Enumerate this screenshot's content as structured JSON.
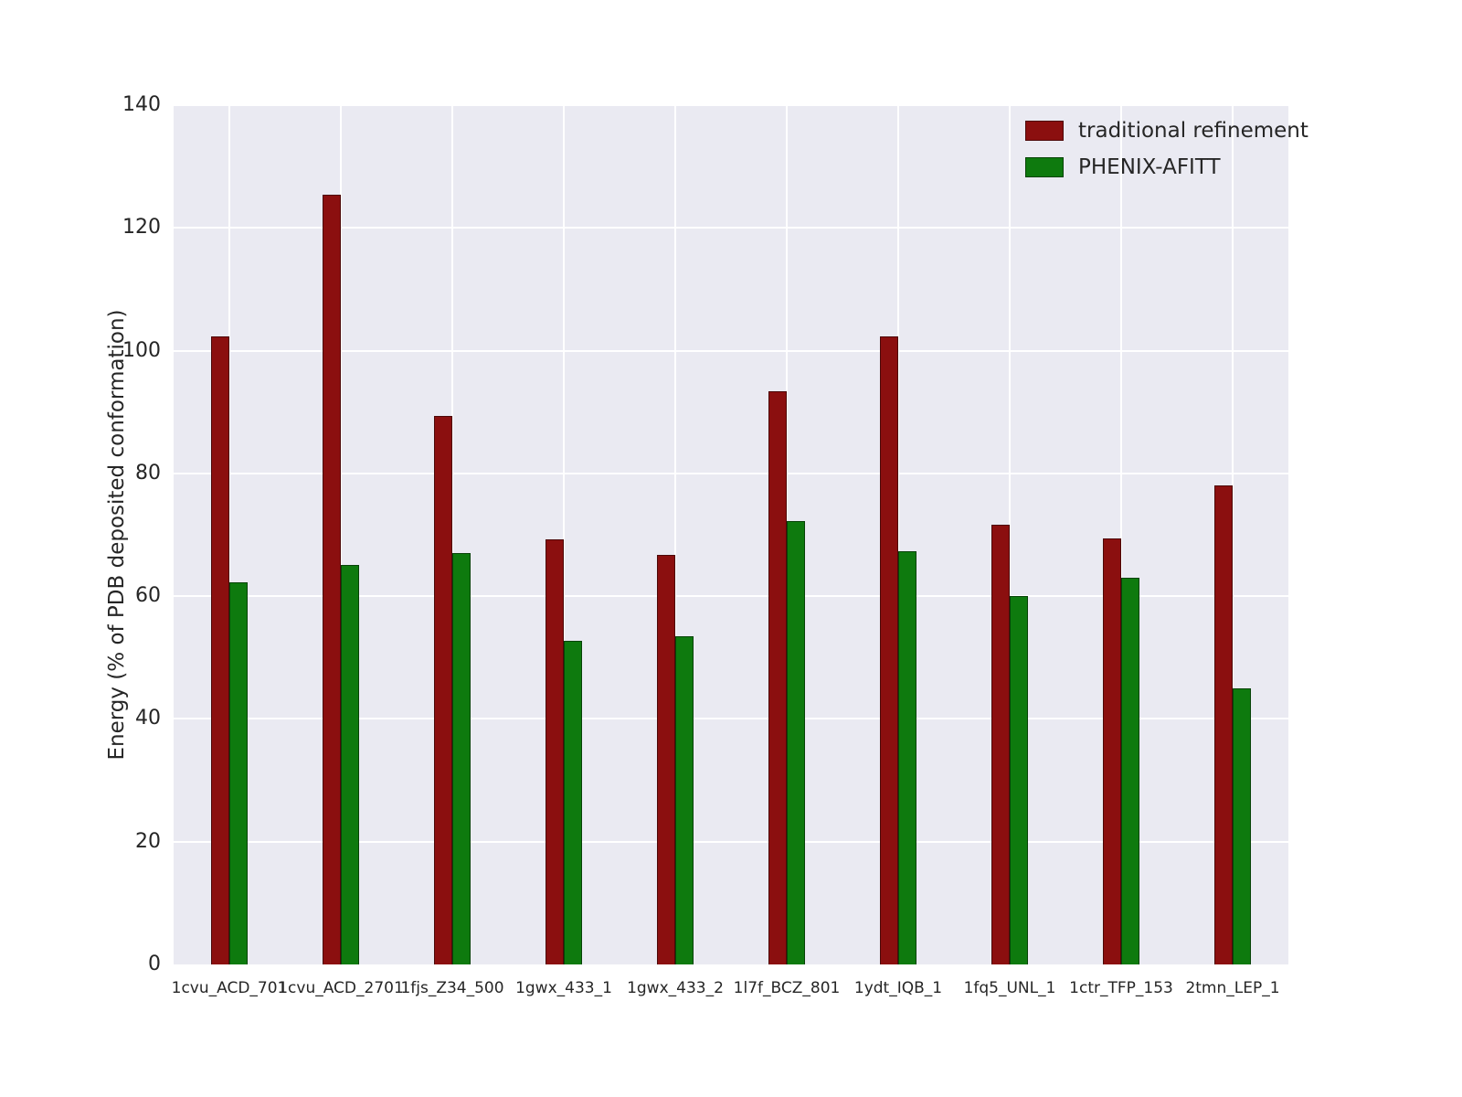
{
  "figure": {
    "background": "#ffffff",
    "axis_text_color": "#262626"
  },
  "chart_data": {
    "type": "bar",
    "title": "",
    "xlabel": "",
    "ylabel": "Energy (% of PDB deposited conformation)",
    "ylim": [
      0,
      140
    ],
    "yticks": [
      0,
      20,
      40,
      60,
      80,
      100,
      120,
      140
    ],
    "grid": true,
    "plot_bg": "#eaeaf2",
    "grid_color": "#ffffff",
    "legend_position": "upper right",
    "categories": [
      "1cvu_ACD_701",
      "1cvu_ACD_2701",
      "1fjs_Z34_500",
      "1gwx_433_1",
      "1gwx_433_2",
      "1l7f_BCZ_801",
      "1ydt_IQB_1",
      "1fq5_UNL_1",
      "1ctr_TFP_153",
      "2tmn_LEP_1"
    ],
    "series": [
      {
        "name": "traditional refinement",
        "color": "#8b0f0f",
        "values": [
          102.3,
          125.4,
          89.4,
          69.3,
          66.7,
          93.4,
          102.3,
          71.6,
          69.4,
          78.0
        ]
      },
      {
        "name": "PHENIX-AFITT",
        "color": "#0e7a0e",
        "values": [
          62.3,
          65.1,
          67.0,
          52.8,
          53.4,
          72.2,
          67.3,
          60.0,
          63.0,
          45.0
        ]
      }
    ]
  }
}
